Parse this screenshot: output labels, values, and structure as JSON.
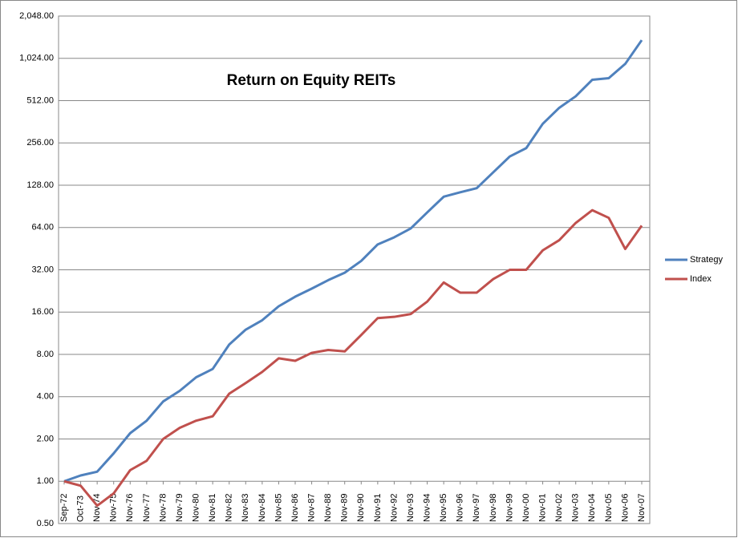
{
  "chart_data": {
    "type": "line",
    "title": "Return on Equity REITs",
    "categories": [
      "Sep-72",
      "Oct-73",
      "Nov-74",
      "Nov-75",
      "Nov-76",
      "Nov-77",
      "Nov-78",
      "Nov-79",
      "Nov-80",
      "Nov-81",
      "Nov-82",
      "Nov-83",
      "Nov-84",
      "Nov-85",
      "Nov-86",
      "Nov-87",
      "Nov-88",
      "Nov-89",
      "Nov-90",
      "Nov-91",
      "Nov-92",
      "Nov-93",
      "Nov-94",
      "Nov-95",
      "Nov-96",
      "Nov-97",
      "Nov-98",
      "Nov-99",
      "Nov-00",
      "Nov-01",
      "Nov-02",
      "Nov-03",
      "Nov-04",
      "Nov-05",
      "Nov-06",
      "Nov-07"
    ],
    "series": [
      {
        "name": "Strategy",
        "color": "#4f81bd",
        "values": [
          1.0,
          1.1,
          1.17,
          1.58,
          2.2,
          2.7,
          3.7,
          4.4,
          5.5,
          6.3,
          9.4,
          12,
          14,
          17.6,
          20.6,
          23.5,
          27,
          30.5,
          37,
          48.5,
          54.5,
          63,
          82,
          106,
          114,
          122,
          158,
          205,
          235,
          350,
          455,
          550,
          720,
          740,
          935,
          1380
        ]
      },
      {
        "name": "Index",
        "color": "#c0504d",
        "values": [
          1.0,
          0.93,
          0.67,
          0.82,
          1.2,
          1.4,
          2.0,
          2.4,
          2.7,
          2.9,
          4.2,
          5.0,
          6.0,
          7.5,
          7.2,
          8.2,
          8.6,
          8.4,
          11,
          14.5,
          14.8,
          15.5,
          19,
          26,
          22,
          22,
          27.5,
          32,
          32,
          44,
          52,
          69,
          85,
          75,
          45,
          66
        ]
      }
    ],
    "log_scale": true,
    "grid": true,
    "legend": "right",
    "ylim": [
      0.5,
      2048
    ],
    "yticks": [
      {
        "value": 0.5,
        "label": "0.50"
      },
      {
        "value": 1,
        "label": "1.00"
      },
      {
        "value": 2,
        "label": "2.00"
      },
      {
        "value": 4,
        "label": "4.00"
      },
      {
        "value": 8,
        "label": "8.00"
      },
      {
        "value": 16,
        "label": "16.00"
      },
      {
        "value": 32,
        "label": "32.00"
      },
      {
        "value": 64,
        "label": "64.00"
      },
      {
        "value": 128,
        "label": "128.00"
      },
      {
        "value": 256,
        "label": "256.00"
      },
      {
        "value": 512,
        "label": "512.00"
      },
      {
        "value": 1024,
        "label": "1,024.00"
      },
      {
        "value": 2048,
        "label": "2,048.00"
      }
    ]
  }
}
